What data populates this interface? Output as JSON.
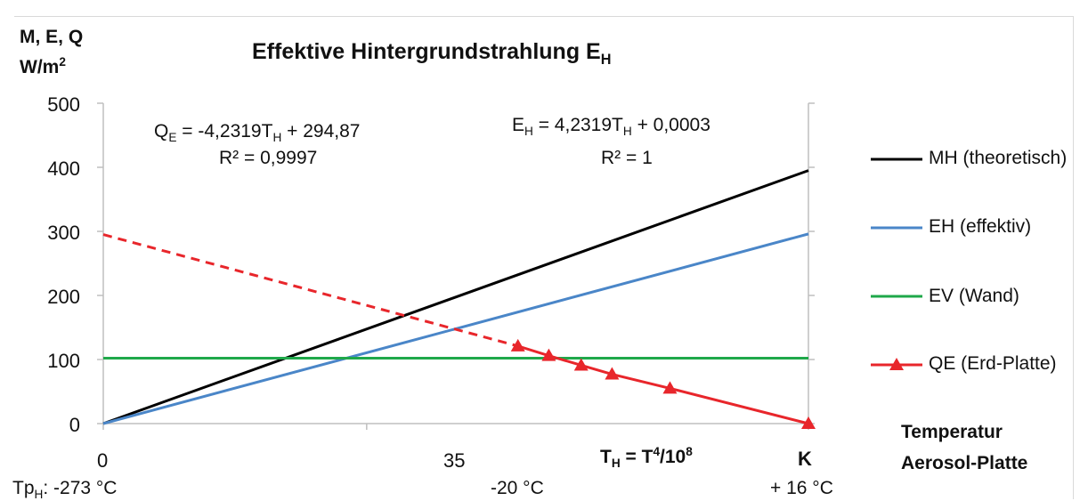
{
  "chart_data": {
    "type": "line",
    "title": "Effektive Hintergrundstrahlung",
    "title_subscript": "H",
    "title_main": "E",
    "ylabel": [
      "M, E, Q",
      "W/m"
    ],
    "ylabel_sup": "2",
    "ylim": [
      0,
      500
    ],
    "yticks": [
      "0",
      "100",
      "200",
      "300",
      "400",
      "500"
    ],
    "xlim": [
      0,
      93.7
    ],
    "x_tick_values": [
      0,
      35,
      93.7
    ],
    "x_tick_labels": [
      "0",
      "35",
      "K"
    ],
    "xaxis_formula": {
      "lhs": "T",
      "lhs_sub": "H",
      "rhs": " = T",
      "rhs_sup": "4",
      "tail": "/10",
      "tail_sup": "8"
    },
    "x_temperature_labels": [
      {
        "prefix": "Tp",
        "sub": "H",
        "text": ": -273 °C"
      },
      {
        "prefix": "",
        "sub": "",
        "text": "-20 °C"
      },
      {
        "prefix": "",
        "sub": "",
        "text": "+ 16 °C"
      }
    ],
    "x_temperature_positions": [
      0,
      50.2,
      93.7
    ],
    "xlabel": [
      "Temperatur",
      "Aerosol-Platte"
    ],
    "equation_left": {
      "lhs": "Q",
      "lhs_sub": "E",
      "mid": " = -4,2319T",
      "mid_sub": "H",
      "tail": " + 294,87",
      "r2": "R² = 0,9997"
    },
    "equation_right": {
      "lhs": "E",
      "lhs_sub": "H",
      "mid": " = 4,2319T",
      "mid_sub": "H",
      "tail": " + 0,0003",
      "r2": "R² = 1"
    },
    "series": [
      {
        "name": "MH (theoretisch)",
        "color": "#000000",
        "style": "solid",
        "x": [
          0,
          93.7
        ],
        "y": [
          0,
          395
        ]
      },
      {
        "name": "EH (effektiv)",
        "color": "#4a86c8",
        "style": "solid",
        "x": [
          0,
          93.7
        ],
        "y": [
          0,
          296
        ]
      },
      {
        "name": "EV (Wand)",
        "color": "#1fa84a",
        "style": "solid",
        "x": [
          0,
          93.7
        ],
        "y": [
          102,
          102
        ]
      },
      {
        "name": "QE (Erd-Platte)",
        "color": "#e8262b",
        "style": "solid",
        "marker": "triangle",
        "x": [
          55.1,
          59.2,
          63.5,
          67.6,
          75.3,
          93.7
        ],
        "y": [
          121,
          106,
          91,
          77,
          55,
          0
        ]
      },
      {
        "name": "QE trend",
        "color": "#e8262b",
        "style": "dashed",
        "x": [
          0,
          55.1
        ],
        "y": [
          295,
          121
        ]
      }
    ],
    "legend_position": "right"
  }
}
